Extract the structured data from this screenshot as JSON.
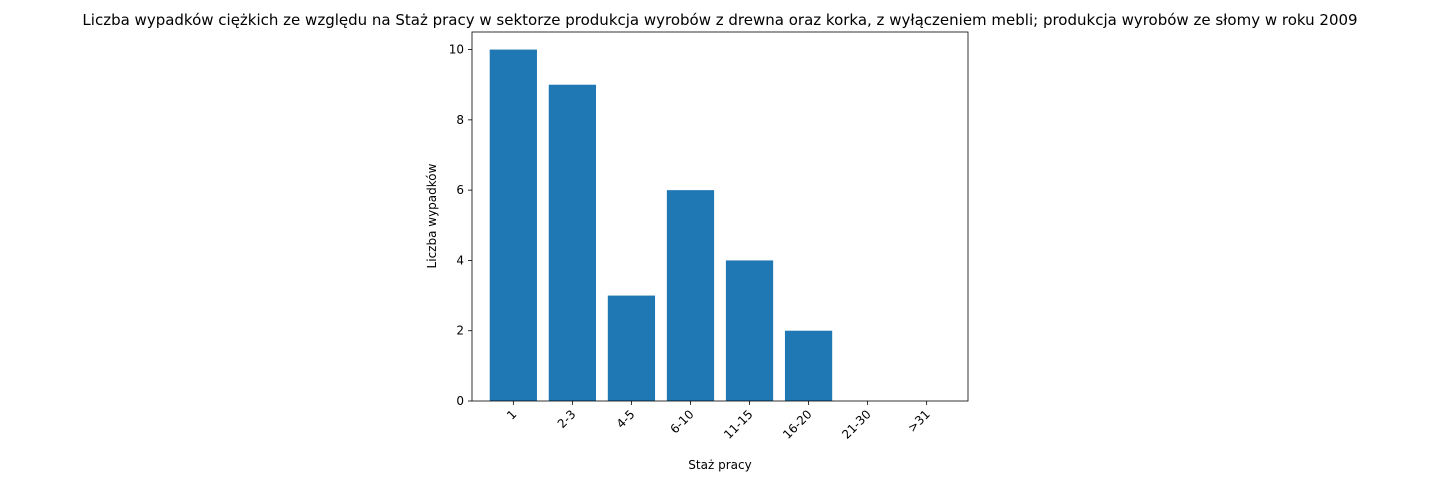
{
  "chart_data": {
    "type": "bar",
    "title": "Liczba wypadków ciężkich ze względu na Staż pracy w sektorze produkcja wyrobów z drewna oraz korka, z wyłączeniem mebli; produkcja wyrobów ze słomy w roku 2009",
    "xlabel": "Staż pracy",
    "ylabel": "Liczba wypadków",
    "categories": [
      "1",
      "2-3",
      "4-5",
      "6-10",
      "11-15",
      "16-20",
      "21-30",
      ">31"
    ],
    "values": [
      10,
      9,
      3,
      6,
      4,
      2,
      0,
      0
    ],
    "ylim": [
      0,
      10.5
    ],
    "yticks": [
      0,
      2,
      4,
      6,
      8,
      10
    ],
    "bar_color": "#1f77b4",
    "grid": false,
    "legend": "none"
  }
}
